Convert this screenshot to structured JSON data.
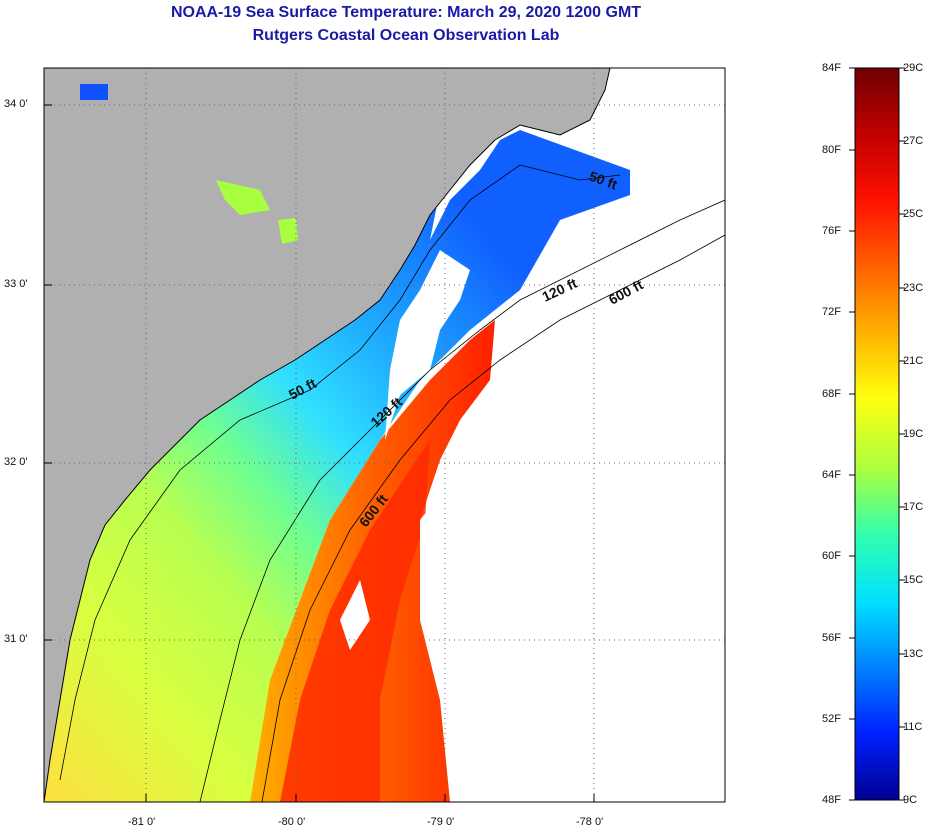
{
  "title": {
    "line1": "NOAA-19 Sea Surface Temperature:  March 29, 2020 1200 GMT",
    "line2": "Rutgers Coastal Ocean Observation Lab"
  },
  "map": {
    "lat_labels": [
      "34 0'",
      "33 0'",
      "32 0'",
      "31 0'"
    ],
    "lon_labels": [
      "-81 0'",
      "-80 0'",
      "-79 0'",
      "-78 0'"
    ],
    "contour_labels": [
      "50 ft",
      "120 ft",
      "600 ft",
      "50 ft",
      "120 ft",
      "600 ft"
    ],
    "colors": {
      "land": "#b0b0b0",
      "cloud": "#ffffff",
      "coast": "#000000",
      "grid": "#666666"
    }
  },
  "colorbar": {
    "f_labels": [
      "84F",
      "80F",
      "76F",
      "72F",
      "68F",
      "64F",
      "60F",
      "56F",
      "52F",
      "48F"
    ],
    "c_labels": [
      "29C",
      "27C",
      "25C",
      "23C",
      "21C",
      "19C",
      "17C",
      "15C",
      "13C",
      "11C",
      "9C"
    ],
    "gradient": [
      "#700000",
      "#c00000",
      "#ff1000",
      "#ff6000",
      "#ffb000",
      "#ffff10",
      "#a8ff40",
      "#30ffb0",
      "#00e0ff",
      "#0080ff",
      "#0020ff",
      "#000090"
    ]
  }
}
